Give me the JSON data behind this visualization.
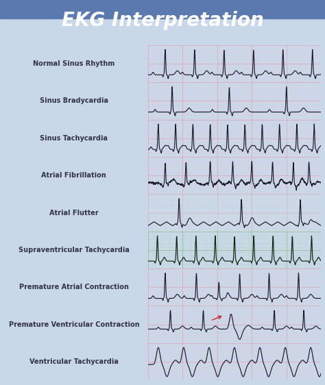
{
  "title": "EKG Interpretation",
  "title_bg_top": "#5a7ab0",
  "title_bg_bot": "#3a5a90",
  "title_color": "white",
  "title_fontsize": 20,
  "rows": [
    {
      "label": "Normal Sinus Rhythm",
      "grid": "pink"
    },
    {
      "label": "Sinus Bradycardia",
      "grid": "pink"
    },
    {
      "label": "Sinus Tachycardia",
      "grid": "pink"
    },
    {
      "label": "Atrial Fibrillation",
      "grid": "pink"
    },
    {
      "label": "Atrial Flutter",
      "grid": "lightpink"
    },
    {
      "label": "Supraventricular Tachycardia",
      "grid": "green"
    },
    {
      "label": "Premature Atrial Contraction",
      "grid": "pink"
    },
    {
      "label": "Premature Ventricular Contraction",
      "grid": "pink"
    },
    {
      "label": "Ventricular Tachycardia",
      "grid": "pink"
    }
  ],
  "outer_bg": "#c8d8e8",
  "label_bg": "#eef2f8",
  "cell_border": "#9aaabb",
  "label_fontsize": 7,
  "label_color": "#333344",
  "grid_colors": {
    "pink": {
      "bg": "#fce8f0",
      "minor": "#f0c8d8",
      "major": "#e0a8b8"
    },
    "lightpink": {
      "bg": "#f8eef0",
      "minor": "#ecd8dc",
      "major": "#d8b8bc"
    },
    "green": {
      "bg": "#dff0df",
      "minor": "#b8ddb8",
      "major": "#90c090"
    }
  }
}
